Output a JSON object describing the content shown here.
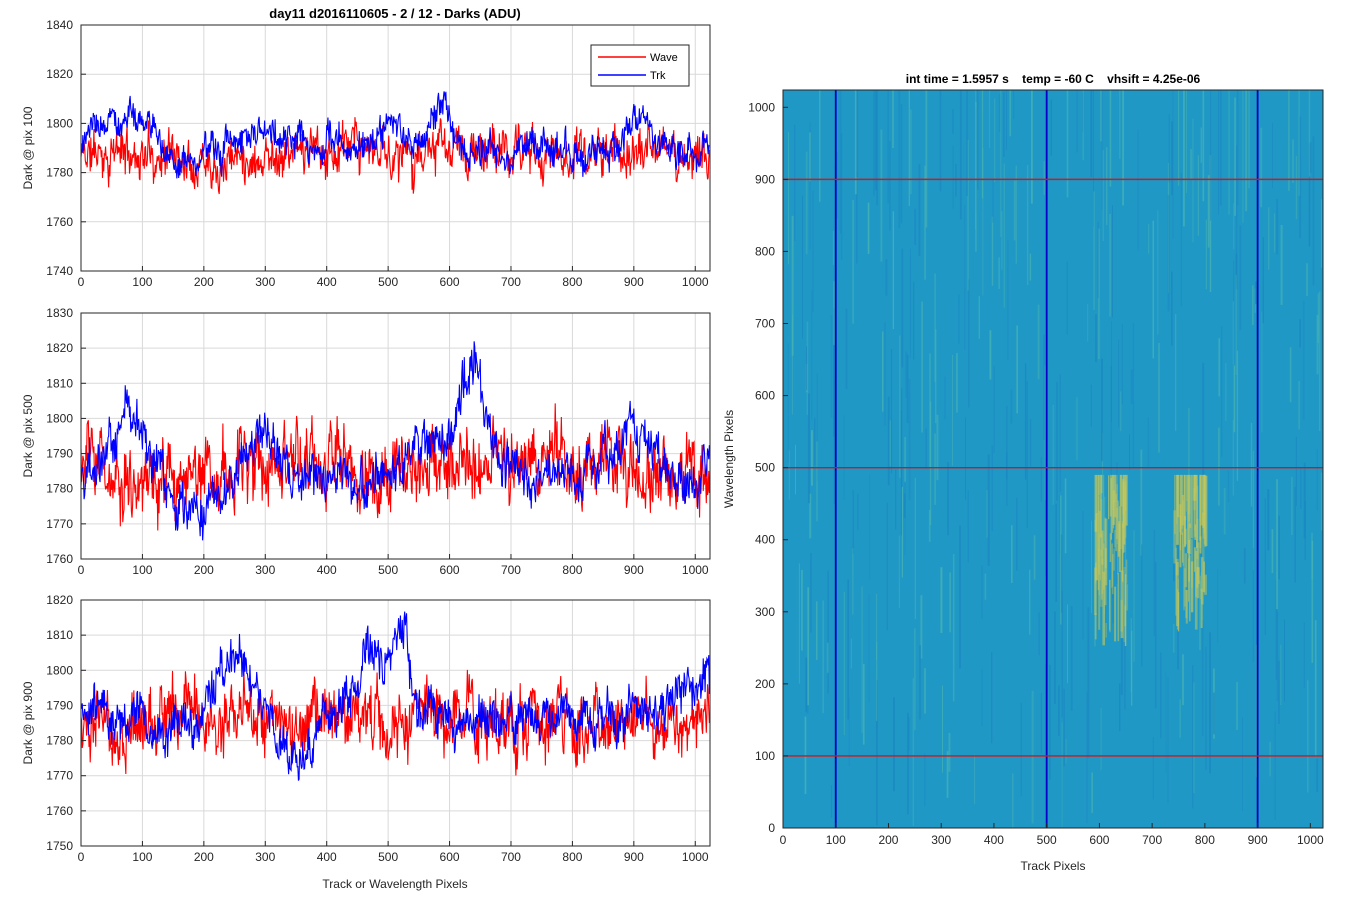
{
  "title": "day11 d2016110605 - 2 / 12 - Darks (ADU)",
  "legend": {
    "placement": "top-right",
    "entries": [
      {
        "name": "Wave",
        "color": "#ff0000"
      },
      {
        "name": "Trk",
        "color": "#0000ff"
      }
    ]
  },
  "chart_data": [
    {
      "type": "line",
      "title": "day11 d2016110605 - 2 / 12 - Darks (ADU)",
      "ylabel": "Dark @ pix 100",
      "xlabel": "",
      "xlim": [
        0,
        1024
      ],
      "ylim": [
        1740,
        1840
      ],
      "xticks": [
        0,
        100,
        200,
        300,
        400,
        500,
        600,
        700,
        800,
        900,
        1000
      ],
      "yticks": [
        1740,
        1760,
        1780,
        1800,
        1820,
        1840
      ],
      "grid": true,
      "series": [
        {
          "name": "Wave",
          "color": "#ff0000",
          "base": 1788,
          "noise": 7,
          "seed": 11,
          "bumps": []
        },
        {
          "name": "Trk",
          "color": "#0000ff",
          "base": 1790,
          "noise": 5,
          "seed": 23,
          "bumps": [
            [
              75,
              14,
              40
            ],
            [
              590,
              16,
              15
            ],
            [
              910,
              12,
              20
            ],
            [
              290,
              8,
              40
            ],
            [
              510,
              6,
              40
            ],
            [
              180,
              -6,
              40
            ]
          ]
        }
      ]
    },
    {
      "type": "line",
      "ylabel": "Dark @ pix 500",
      "xlabel": "",
      "xlim": [
        0,
        1024
      ],
      "ylim": [
        1760,
        1830
      ],
      "xticks": [
        0,
        100,
        200,
        300,
        400,
        500,
        600,
        700,
        800,
        900,
        1000
      ],
      "yticks": [
        1760,
        1770,
        1780,
        1790,
        1800,
        1810,
        1820,
        1830
      ],
      "grid": true,
      "series": [
        {
          "name": "Wave",
          "color": "#ff0000",
          "base": 1785,
          "noise": 8,
          "seed": 31,
          "bumps": []
        },
        {
          "name": "Trk",
          "color": "#0000ff",
          "base": 1783,
          "noise": 5,
          "seed": 47,
          "bumps": [
            [
              75,
              18,
              30
            ],
            [
              635,
              30,
              22
            ],
            [
              290,
              12,
              30
            ],
            [
              560,
              10,
              30
            ],
            [
              905,
              16,
              30
            ],
            [
              190,
              -7,
              40
            ]
          ]
        }
      ]
    },
    {
      "type": "line",
      "ylabel": "Dark @ pix 900",
      "xlabel": "Track or Wavelength Pixels",
      "xlim": [
        0,
        1024
      ],
      "ylim": [
        1750,
        1820
      ],
      "xticks": [
        0,
        100,
        200,
        300,
        400,
        500,
        600,
        700,
        800,
        900,
        1000
      ],
      "yticks": [
        1750,
        1760,
        1770,
        1780,
        1790,
        1800,
        1810,
        1820
      ],
      "grid": true,
      "series": [
        {
          "name": "Wave",
          "color": "#ff0000",
          "base": 1786,
          "noise": 7,
          "seed": 53,
          "bumps": []
        },
        {
          "name": "Trk",
          "color": "#0000ff",
          "base": 1787,
          "noise": 5,
          "seed": 67,
          "bumps": [
            [
              250,
              16,
              30
            ],
            [
              470,
              14,
              30
            ],
            [
              525,
              22,
              15
            ],
            [
              345,
              -14,
              25
            ],
            [
              990,
              9,
              25
            ],
            [
              150,
              -8,
              30
            ]
          ]
        }
      ]
    },
    {
      "type": "heatmap",
      "title": "int time = 1.5957 s    temp = -60 C    vhsift = 4.25e-06",
      "xlabel": "Track Pixels",
      "ylabel": "Wavelength Pixels",
      "xlim": [
        0,
        1024
      ],
      "ylim": [
        0,
        1024
      ],
      "xticks": [
        0,
        100,
        200,
        300,
        400,
        500,
        600,
        700,
        800,
        900,
        1000
      ],
      "yticks": [
        0,
        100,
        200,
        300,
        400,
        500,
        600,
        700,
        800,
        900,
        1000
      ],
      "grid": false,
      "vertical_lines": {
        "x": [
          100,
          500,
          900
        ],
        "color": "#0000c8"
      },
      "horizontal_lines": {
        "y": [
          100,
          500,
          900
        ],
        "color": "#d01818"
      },
      "hot_regions": [
        {
          "x": [
            590,
            650
          ],
          "y": [
            250,
            490
          ]
        },
        {
          "x": [
            740,
            800
          ],
          "y": [
            270,
            490
          ]
        }
      ],
      "base_color": "#1f98c6",
      "hot_color": "#c7c85a"
    }
  ]
}
